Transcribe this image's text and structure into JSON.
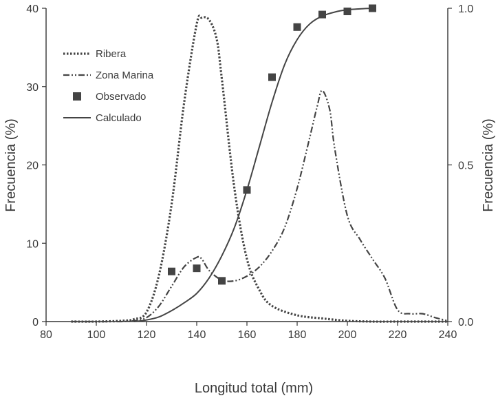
{
  "chart_data": {
    "type": "line",
    "xlabel": "Longitud total (mm)",
    "ylabel": "Frecuencia (%)",
    "y2label": "Frecuencia (%)",
    "xlim": [
      80,
      240
    ],
    "ylim": [
      0,
      40
    ],
    "y2lim": [
      0,
      1
    ],
    "xticks": [
      "80",
      "100",
      "120",
      "140",
      "160",
      "180",
      "200",
      "220",
      "240"
    ],
    "yticks": [
      "0",
      "10",
      "20",
      "30",
      "40"
    ],
    "y2ticks": [
      "0.0",
      "0.5",
      "1.0"
    ],
    "legend_position": "top-left",
    "series": [
      {
        "name": "Ribera",
        "axis": "left",
        "style": "dotted",
        "x": [
          90,
          100,
          110,
          115,
          120,
          125,
          130,
          135,
          140,
          142,
          145,
          148,
          150,
          155,
          160,
          165,
          170,
          180,
          190,
          200,
          210,
          220,
          230,
          240
        ],
        "y": [
          0,
          0,
          0.1,
          0.3,
          1.2,
          6.0,
          15.0,
          28.0,
          38.0,
          38.8,
          38.5,
          36.0,
          31.0,
          17.0,
          8.0,
          4.0,
          2.0,
          0.8,
          0.4,
          0.1,
          0,
          0,
          0,
          0
        ]
      },
      {
        "name": "Zona Marina",
        "axis": "left",
        "style": "dash-dot-dot",
        "x": [
          90,
          100,
          110,
          115,
          120,
          125,
          130,
          135,
          140,
          142,
          145,
          150,
          155,
          160,
          165,
          170,
          175,
          180,
          185,
          188,
          190,
          193,
          195,
          200,
          205,
          210,
          215,
          220,
          225,
          230,
          235,
          240
        ],
        "y": [
          0,
          0,
          0,
          0.1,
          0.5,
          2.0,
          4.5,
          7.0,
          8.2,
          8.0,
          6.5,
          5.3,
          5.2,
          5.8,
          7.0,
          9.0,
          12.0,
          17.0,
          23.5,
          27.5,
          29.5,
          27.0,
          22.0,
          13.5,
          10.5,
          8.0,
          5.5,
          1.5,
          1.0,
          1.0,
          0.5,
          0.1
        ]
      },
      {
        "name": "Observado",
        "axis": "right",
        "style": "square-markers",
        "x": [
          130,
          140,
          150,
          160,
          170,
          180,
          190,
          200,
          210
        ],
        "y": [
          0.16,
          0.17,
          0.13,
          0.42,
          0.78,
          0.94,
          0.98,
          0.99,
          1.0
        ]
      },
      {
        "name": "Calculado",
        "axis": "right",
        "style": "solid",
        "x": [
          115,
          120,
          125,
          130,
          135,
          140,
          145,
          150,
          155,
          160,
          165,
          170,
          175,
          180,
          185,
          190,
          195,
          200,
          205,
          210
        ],
        "y": [
          0.0,
          0.005,
          0.015,
          0.035,
          0.06,
          0.09,
          0.14,
          0.21,
          0.3,
          0.42,
          0.56,
          0.7,
          0.82,
          0.9,
          0.95,
          0.975,
          0.988,
          0.995,
          0.998,
          1.0
        ]
      }
    ],
    "colors": {
      "line": "#444444",
      "axis": "#333333",
      "text": "#3a3a3a"
    }
  }
}
